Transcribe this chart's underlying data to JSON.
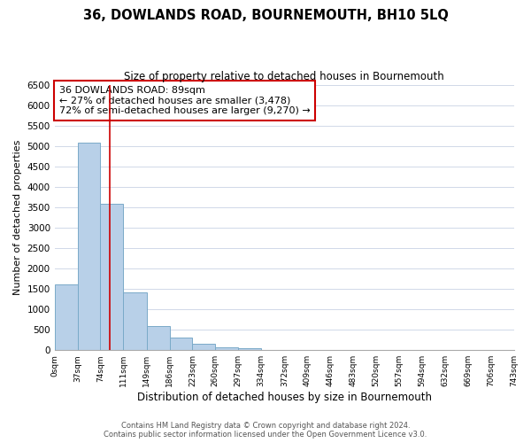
{
  "title": "36, DOWLANDS ROAD, BOURNEMOUTH, BH10 5LQ",
  "subtitle": "Size of property relative to detached houses in Bournemouth",
  "xlabel": "Distribution of detached houses by size in Bournemouth",
  "ylabel": "Number of detached properties",
  "footnote1": "Contains HM Land Registry data © Crown copyright and database right 2024.",
  "footnote2": "Contains public sector information licensed under the Open Government Licence v3.0.",
  "bin_edges": [
    0,
    37,
    74,
    111,
    149,
    186,
    223,
    260,
    297,
    334,
    372,
    409,
    446,
    483,
    520,
    557,
    594,
    632,
    669,
    706,
    743
  ],
  "bin_labels": [
    "0sqm",
    "37sqm",
    "74sqm",
    "111sqm",
    "149sqm",
    "186sqm",
    "223sqm",
    "260sqm",
    "297sqm",
    "334sqm",
    "372sqm",
    "409sqm",
    "446sqm",
    "483sqm",
    "520sqm",
    "557sqm",
    "594sqm",
    "632sqm",
    "669sqm",
    "706sqm",
    "743sqm"
  ],
  "bar_heights": [
    1620,
    5080,
    3580,
    1420,
    580,
    300,
    150,
    60,
    50,
    0,
    0,
    0,
    0,
    0,
    0,
    0,
    0,
    0,
    0,
    0
  ],
  "bar_color": "#b8d0e8",
  "bar_edge_color": "#7aaac8",
  "property_line_x": 89,
  "property_line_color": "#cc0000",
  "annotation_title": "36 DOWLANDS ROAD: 89sqm",
  "annotation_line1": "← 27% of detached houses are smaller (3,478)",
  "annotation_line2": "72% of semi-detached houses are larger (9,270) →",
  "ylim": [
    0,
    6500
  ],
  "yticks": [
    0,
    500,
    1000,
    1500,
    2000,
    2500,
    3000,
    3500,
    4000,
    4500,
    5000,
    5500,
    6000,
    6500
  ],
  "background_color": "#ffffff",
  "grid_color": "#d0d8e8"
}
